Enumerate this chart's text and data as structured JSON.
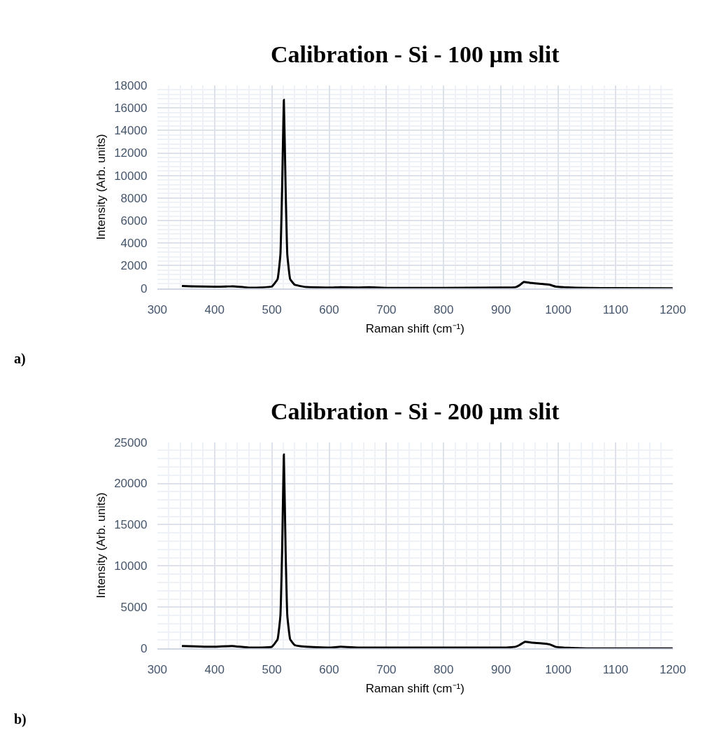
{
  "chart_data": [
    {
      "type": "line",
      "title": "Calibration - Si - 100 µm slit",
      "xlabel": "Raman shift (cm⁻¹)",
      "ylabel": "Intensity (Arb. units)",
      "annotations": [
        "a)"
      ],
      "x": [
        343,
        360,
        400,
        420,
        432,
        445,
        460,
        480,
        500,
        510,
        515,
        518,
        521,
        524,
        527,
        532,
        540,
        560,
        600,
        620,
        650,
        670,
        700,
        800,
        900,
        925,
        932,
        940,
        950,
        970,
        985,
        995,
        1010,
        1050,
        1100,
        1200
      ],
      "series": [
        {
          "color": "#000000",
          "values": [
            200,
            170,
            130,
            150,
            170,
            120,
            40,
            60,
            150,
            800,
            3000,
            9000,
            16700,
            9000,
            3000,
            800,
            300,
            100,
            50,
            90,
            60,
            80,
            30,
            30,
            60,
            80,
            250,
            550,
            480,
            380,
            300,
            150,
            80,
            20,
            10,
            0
          ]
        }
      ],
      "xlim": [
        300,
        1200
      ],
      "xticks": [
        300,
        400,
        500,
        600,
        700,
        800,
        900,
        1000,
        1100,
        1200
      ],
      "ylim": [
        0,
        18000
      ],
      "yticks": [
        0,
        2000,
        4000,
        6000,
        8000,
        10000,
        12000,
        14000,
        16000,
        18000
      ],
      "grid": true,
      "marker": "none",
      "line_style": "solid"
    },
    {
      "type": "line",
      "title": "Calibration - Si - 200 µm slit",
      "xlabel": "Raman shift (cm⁻¹)",
      "ylabel": "Intensity (Arb. units)",
      "annotations": [
        "b)"
      ],
      "x": [
        343,
        400,
        430,
        460,
        500,
        510,
        515,
        518,
        521,
        524,
        527,
        532,
        540,
        560,
        600,
        620,
        650,
        670,
        700,
        800,
        900,
        925,
        932,
        942,
        955,
        975,
        985,
        995,
        1010,
        1050,
        1100,
        1200
      ],
      "series": [
        {
          "color": "#000000",
          "values": [
            300,
            200,
            300,
            100,
            200,
            1100,
            4000,
            12000,
            23500,
            12000,
            4000,
            1100,
            400,
            200,
            100,
            200,
            100,
            100,
            100,
            100,
            100,
            200,
            400,
            800,
            700,
            600,
            500,
            200,
            100,
            0,
            0,
            0
          ]
        }
      ],
      "xlim": [
        300,
        1200
      ],
      "xticks": [
        300,
        400,
        500,
        600,
        700,
        800,
        900,
        1000,
        1100,
        1200
      ],
      "ylim": [
        0,
        25000
      ],
      "yticks": [
        0,
        5000,
        10000,
        15000,
        20000,
        25000
      ],
      "grid": true,
      "marker": "none",
      "line_style": "solid"
    }
  ]
}
